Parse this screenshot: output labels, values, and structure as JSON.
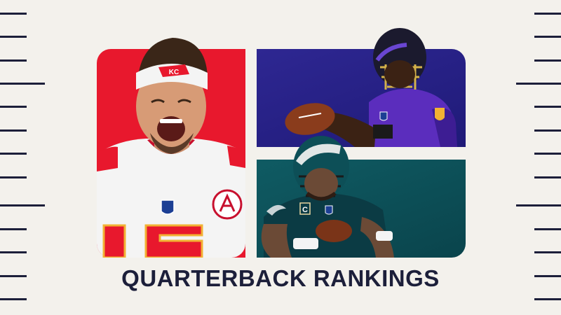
{
  "title": "QUARTERBACK RANKINGS",
  "colors": {
    "background": "#f3f1ec",
    "navy": "#1c1f3a",
    "chiefs_red": "#e8182d",
    "ravens_purple": "#2e2792",
    "eagles_green": "#0f5b63"
  },
  "players": [
    {
      "team": "Chiefs",
      "jersey_number": "15",
      "logo": "chiefs-helmet-logo-icon"
    },
    {
      "team": "Ravens",
      "logo": "ravens-shield-logo-icon"
    },
    {
      "team": "Eagles",
      "patch": "C",
      "logo": "eagles-wing-logo-icon"
    }
  ]
}
